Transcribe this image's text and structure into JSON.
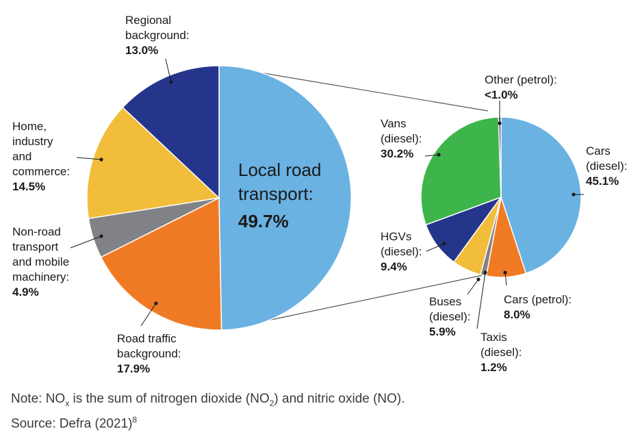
{
  "chart_data": [
    {
      "type": "pie",
      "title": "",
      "slices": [
        {
          "label": "Local road transport:",
          "value": 49.7,
          "value_label": "49.7%",
          "color": "#6ab2e2"
        },
        {
          "label": "Road traffic background:",
          "value": 17.9,
          "value_label": "17.9%",
          "color": "#f07a24"
        },
        {
          "label": "Non-road transport and mobile machinery:",
          "value": 4.9,
          "value_label": "4.9%",
          "color": "#808285"
        },
        {
          "label": "Home, industry and commerce:",
          "value": 14.5,
          "value_label": "14.5%",
          "color": "#f2bd3a"
        },
        {
          "label": "Regional background:",
          "value": 13.0,
          "value_label": "13.0%",
          "color": "#26358c"
        }
      ]
    },
    {
      "type": "pie",
      "title": "",
      "slices": [
        {
          "label": "Cars (diesel):",
          "value": 45.1,
          "value_label": "45.1%",
          "color": "#6ab2e2"
        },
        {
          "label": "Cars (petrol):",
          "value": 8.0,
          "value_label": "8.0%",
          "color": "#f07a24"
        },
        {
          "label": "Taxis (diesel):",
          "value": 1.2,
          "value_label": "1.2%",
          "color": "#808285"
        },
        {
          "label": "Buses (diesel):",
          "value": 5.9,
          "value_label": "5.9%",
          "color": "#f2bd3a"
        },
        {
          "label": "HGVs (diesel):",
          "value": 9.4,
          "value_label": "9.4%",
          "color": "#26358c"
        },
        {
          "label": "Vans (diesel):",
          "value": 30.2,
          "value_label": "30.2%",
          "color": "#3db54a"
        },
        {
          "label": "Other (petrol):",
          "value": 0.5,
          "value_label": "<1.0%",
          "color": "#6b4a9e"
        }
      ]
    }
  ],
  "note": {
    "prefix": "Note: NO",
    "sub_x": "x",
    "middle": " is the sum of nitrogen dioxide (NO",
    "sub_2": "2",
    "suffix": ") and nitric oxide (NO)."
  },
  "source": {
    "text": "Source: Defra (2021)",
    "sup": "8"
  }
}
